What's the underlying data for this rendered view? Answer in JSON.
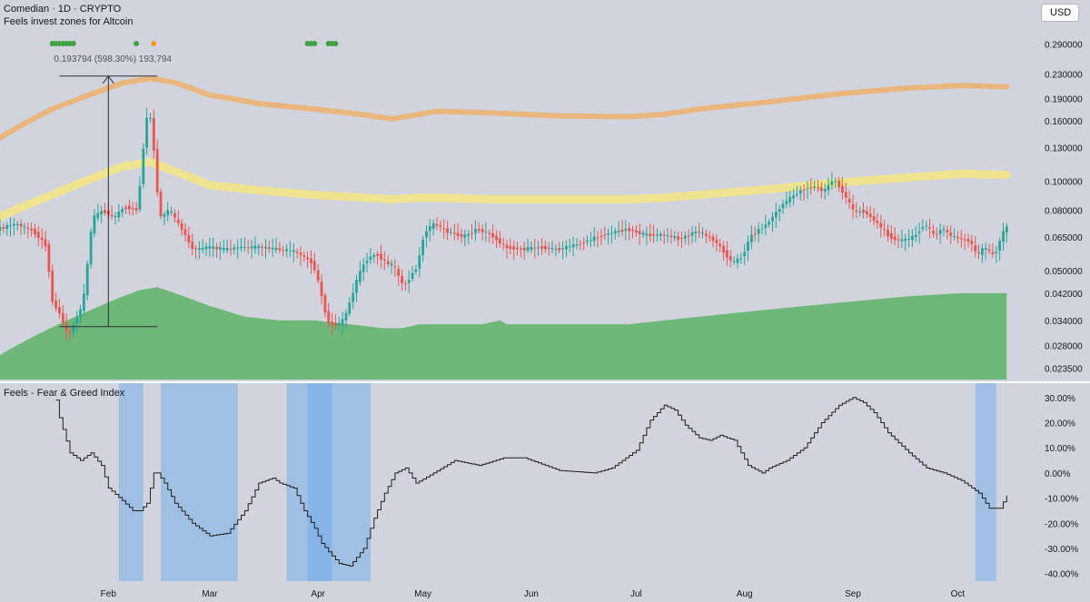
{
  "header": {
    "symbol_line": "Comedian · 1D · CRYPTO",
    "indicator_name": "Feels invest zones for Altcoin",
    "currency": "USD"
  },
  "lower_panel": {
    "title": "Feels - Fear & Greed Index"
  },
  "measure_label": "0.193794 (598.30%) 193,794",
  "colors": {
    "background": "#d1d4dc",
    "candle_up": "#26a69a",
    "candle_down": "#ef5350",
    "upper_band": "#e9b77e",
    "middle_band": "#f0e38f",
    "buy_zone": "#6db879",
    "fear_zone": "#8fb9e6",
    "extreme_fear_zone": "#7fb0e8",
    "index_line": "#1f1f1f",
    "signal_green": "#43a047",
    "signal_orange": "#f39c12"
  },
  "chart_data": [
    {
      "type": "line",
      "title": "Feels invest zones for Altcoin",
      "y_scale": "log",
      "ylim": [
        0.0215,
        0.33
      ],
      "y_ticks": [
        "0.290000",
        "0.230000",
        "0.190000",
        "0.160000",
        "0.130000",
        "0.100000",
        "0.080000",
        "0.065000",
        "0.050000",
        "0.042000",
        "0.034000",
        "0.028000",
        "0.023500"
      ],
      "x_ticks": [
        "Feb",
        "Mar",
        "Apr",
        "May",
        "Jun",
        "Jul",
        "Aug",
        "Sep",
        "Oct"
      ],
      "x_tick_days": [
        31,
        60,
        91,
        121,
        152,
        182,
        213,
        244,
        274
      ],
      "xlim": [
        0,
        290
      ],
      "price": {
        "x": [
          0,
          5,
          10,
          14,
          15,
          17,
          20,
          24,
          25,
          27,
          30,
          33,
          36,
          40,
          43,
          46,
          49,
          52,
          53,
          55,
          57,
          60,
          65,
          70,
          75,
          80,
          85,
          90,
          94,
          95,
          98,
          100,
          103,
          105,
          108,
          111,
          113,
          116,
          120,
          122,
          125,
          128,
          133,
          137,
          141,
          145,
          150,
          155,
          160,
          165,
          170,
          175,
          180,
          185,
          190,
          195,
          200,
          205,
          210,
          213,
          215,
          220,
          225,
          230,
          234,
          236,
          239,
          241,
          245,
          247,
          250,
          255,
          258,
          262,
          265,
          268,
          270,
          272,
          275,
          278,
          280,
          282,
          285,
          288
        ],
        "values": [
          0.069,
          0.072,
          0.068,
          0.06,
          0.04,
          0.037,
          0.03,
          0.038,
          0.045,
          0.075,
          0.08,
          0.075,
          0.082,
          0.08,
          0.18,
          0.075,
          0.08,
          0.07,
          0.068,
          0.06,
          0.059,
          0.06,
          0.059,
          0.06,
          0.06,
          0.059,
          0.058,
          0.053,
          0.034,
          0.033,
          0.033,
          0.037,
          0.048,
          0.054,
          0.057,
          0.053,
          0.052,
          0.044,
          0.052,
          0.068,
          0.072,
          0.068,
          0.065,
          0.069,
          0.066,
          0.06,
          0.059,
          0.06,
          0.059,
          0.061,
          0.064,
          0.067,
          0.069,
          0.066,
          0.066,
          0.064,
          0.068,
          0.063,
          0.053,
          0.056,
          0.065,
          0.072,
          0.085,
          0.094,
          0.096,
          0.092,
          0.102,
          0.094,
          0.078,
          0.08,
          0.075,
          0.065,
          0.063,
          0.065,
          0.072,
          0.065,
          0.07,
          0.066,
          0.064,
          0.063,
          0.056,
          0.06,
          0.056,
          0.07
        ]
      },
      "upper_band": {
        "x": [
          0,
          15,
          28,
          35,
          43,
          50,
          60,
          75,
          90,
          105,
          112,
          120,
          125,
          140,
          160,
          180,
          190,
          200,
          220,
          240,
          260,
          275,
          288
        ],
        "values": [
          0.14,
          0.175,
          0.2,
          0.214,
          0.222,
          0.215,
          0.195,
          0.182,
          0.175,
          0.167,
          0.162,
          0.168,
          0.172,
          0.17,
          0.166,
          0.165,
          0.168,
          0.175,
          0.185,
          0.197,
          0.206,
          0.21,
          0.208
        ]
      },
      "middle_band": {
        "x": [
          0,
          15,
          28,
          35,
          43,
          50,
          60,
          75,
          90,
          105,
          112,
          120,
          125,
          140,
          160,
          180,
          190,
          200,
          220,
          240,
          260,
          275,
          288
        ],
        "values": [
          0.076,
          0.09,
          0.104,
          0.112,
          0.116,
          0.108,
          0.097,
          0.093,
          0.09,
          0.088,
          0.087,
          0.088,
          0.088,
          0.087,
          0.087,
          0.087,
          0.088,
          0.09,
          0.094,
          0.099,
          0.103,
          0.106,
          0.105
        ]
      },
      "buy_zone_top": {
        "x": [
          0,
          12,
          24,
          33,
          40,
          45,
          50,
          60,
          70,
          80,
          90,
          100,
          110,
          115,
          120,
          125,
          138,
          143,
          145,
          160,
          180,
          190,
          200,
          220,
          240,
          260,
          275,
          288
        ],
        "values": [
          0.026,
          0.031,
          0.036,
          0.04,
          0.043,
          0.044,
          0.042,
          0.038,
          0.035,
          0.034,
          0.034,
          0.033,
          0.032,
          0.032,
          0.033,
          0.033,
          0.033,
          0.034,
          0.033,
          0.033,
          0.033,
          0.034,
          0.035,
          0.037,
          0.039,
          0.041,
          0.042,
          0.042
        ]
      },
      "annotations": {
        "measure_low": 0.0324,
        "measure_high": 0.226,
        "measure_x_range": [
          17,
          45
        ],
        "measure_arrow_x": 31,
        "signal_dots": [
          {
            "x": [
              15,
              16,
              17,
              18,
              19,
              20,
              21
            ],
            "color": "green"
          },
          {
            "x": [
              39
            ],
            "color": "green"
          },
          {
            "x": [
              44
            ],
            "color": "orange"
          },
          {
            "x": [
              88,
              89,
              90,
              94,
              95,
              96
            ],
            "color": "green"
          }
        ]
      }
    },
    {
      "type": "line",
      "title": "Feels - Fear & Greed Index",
      "ylim": [
        -43,
        35
      ],
      "y_ticks": [
        "30.00%",
        "20.00%",
        "10.00%",
        "0.00%",
        "-10.00%",
        "-20.00%",
        "-30.00%",
        "-40.00%"
      ],
      "y_tick_values": [
        30,
        20,
        10,
        0,
        -10,
        -20,
        -30,
        -40
      ],
      "x": [
        16,
        17,
        20,
        23,
        26,
        29,
        31,
        35,
        38,
        40,
        42,
        44,
        45,
        47,
        50,
        55,
        60,
        65,
        70,
        74,
        78,
        80,
        84,
        87,
        90,
        92,
        95,
        97,
        100,
        104,
        107,
        110,
        113,
        116,
        119,
        124,
        130,
        137,
        144,
        150,
        160,
        170,
        175,
        182,
        186,
        190,
        193,
        196,
        200,
        203,
        206,
        210,
        214,
        218,
        220,
        225,
        230,
        235,
        240,
        244,
        247,
        250,
        254,
        260,
        265,
        270,
        275,
        280,
        283,
        286,
        288
      ],
      "values": [
        29,
        22,
        8,
        5,
        8,
        3,
        -6,
        -11,
        -15,
        -15,
        -12,
        0,
        0,
        -4,
        -12,
        -20,
        -25,
        -24,
        -15,
        -4,
        -2,
        -4,
        -6,
        -15,
        -22,
        -28,
        -33,
        -36,
        -37,
        -30,
        -18,
        -8,
        0,
        2,
        -4,
        0,
        5,
        3,
        6,
        6,
        1,
        0,
        2,
        9,
        21,
        27,
        25,
        19,
        14,
        13,
        15,
        13,
        3,
        0,
        2,
        5,
        10,
        20,
        27,
        30,
        28,
        24,
        16,
        8,
        2,
        0,
        -3,
        -8,
        -14,
        -14,
        -9
      ],
      "shaded_zones": [
        {
          "x": [
            34,
            41
          ],
          "level": "fear"
        },
        {
          "x": [
            46,
            68
          ],
          "level": "fear"
        },
        {
          "x": [
            82,
            106
          ],
          "level": "fear"
        },
        {
          "x": [
            88,
            95
          ],
          "level": "extreme"
        },
        {
          "x": [
            279,
            285
          ],
          "level": "fear"
        }
      ]
    }
  ]
}
